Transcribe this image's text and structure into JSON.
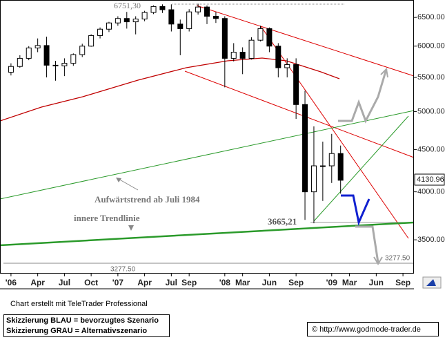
{
  "chart_data": {
    "type": "candlestick",
    "log": true,
    "color_up": "#ffffff",
    "color_down": "#000000",
    "x": [
      "2006-01",
      "2006-02",
      "2006-03",
      "2006-04",
      "2006-05",
      "2006-06",
      "2006-07",
      "2006-08",
      "2006-09",
      "2006-10",
      "2006-11",
      "2006-12",
      "2007-01",
      "2007-02",
      "2007-03",
      "2007-04",
      "2007-05",
      "2007-06",
      "2007-07",
      "2007-08",
      "2007-09",
      "2007-10",
      "2007-11",
      "2007-12",
      "2008-01",
      "2008-02",
      "2008-03",
      "2008-04",
      "2008-05",
      "2008-06",
      "2008-07",
      "2008-08",
      "2008-09",
      "2008-10",
      "2008-11",
      "2008-12",
      "2009-01",
      "2009-02"
    ],
    "open": [
      5580,
      5670,
      5800,
      5970,
      6010,
      5690,
      5680,
      5720,
      5860,
      6000,
      6180,
      6290,
      6400,
      6480,
      6420,
      6470,
      6590,
      6700,
      6640,
      6380,
      6300,
      6600,
      6690,
      6520,
      6480,
      5800,
      5900,
      5800,
      6100,
      6300,
      6000,
      5650,
      5700,
      5100,
      4000,
      4300,
      4300,
      4450
    ],
    "high": [
      5720,
      5850,
      6000,
      6130,
      6160,
      5760,
      5800,
      5880,
      6040,
      6200,
      6320,
      6420,
      6520,
      6600,
      6520,
      6620,
      6720,
      6740,
      6740,
      6460,
      6650,
      6751.3,
      6720,
      6600,
      6520,
      6050,
      5980,
      6150,
      6350,
      6320,
      6050,
      5800,
      5800,
      5300,
      4800,
      4600,
      4700,
      4550
    ],
    "low": [
      5530,
      5650,
      5770,
      5900,
      5500,
      5450,
      5520,
      5680,
      5820,
      5990,
      6130,
      6240,
      6350,
      6300,
      6200,
      6430,
      6560,
      6580,
      6250,
      5850,
      6250,
      6550,
      6380,
      6400,
      5350,
      5750,
      5550,
      5780,
      6080,
      5900,
      5500,
      5500,
      4900,
      3700,
      3665.21,
      3900,
      4100,
      3980
    ],
    "close": [
      5670,
      5800,
      5970,
      6010,
      5690,
      5680,
      5720,
      5860,
      6000,
      6180,
      6290,
      6400,
      6480,
      6420,
      6470,
      6590,
      6700,
      6640,
      6380,
      6300,
      6600,
      6690,
      6520,
      6480,
      5800,
      5900,
      5800,
      6100,
      6300,
      6000,
      5650,
      5700,
      5100,
      4000,
      4300,
      4300,
      4450,
      4130.96
    ],
    "xlim": [
      "2005-12",
      "2009-10"
    ],
    "xticks": [
      {
        "value": "2006-01",
        "label": "'06"
      },
      {
        "value": "2006-04",
        "label": "Apr"
      },
      {
        "value": "2006-07",
        "label": "Jul"
      },
      {
        "value": "2006-10",
        "label": "Oct"
      },
      {
        "value": "2007-01",
        "label": "'07"
      },
      {
        "value": "2007-04",
        "label": "Apr"
      },
      {
        "value": "2007-07",
        "label": "Jul"
      },
      {
        "value": "2007-09",
        "label": "Sep"
      },
      {
        "value": "2008-01",
        "label": "'08"
      },
      {
        "value": "2008-03",
        "label": "Mar"
      },
      {
        "value": "2008-06",
        "label": "Jun"
      },
      {
        "value": "2008-09",
        "label": "Sep"
      },
      {
        "value": "2009-01",
        "label": "'09"
      },
      {
        "value": "2009-03",
        "label": "Mar"
      },
      {
        "value": "2009-06",
        "label": "Jun"
      },
      {
        "value": "2009-09",
        "label": "Sep"
      }
    ],
    "ylim": [
      3192,
      6822
    ],
    "yticks": [
      {
        "value": 3500,
        "label": "3500.00"
      },
      {
        "value": 4000,
        "label": "4000.00"
      },
      {
        "value": 4500,
        "label": "4500.00"
      },
      {
        "value": 5000,
        "label": "5000.00"
      },
      {
        "value": 5500,
        "label": "5500.00"
      },
      {
        "value": 6000,
        "label": "6000.00"
      },
      {
        "value": 6500,
        "label": "6500.00"
      }
    ],
    "last_price_label": "4130.96",
    "annotations": {
      "high_label": "6751,30",
      "low_label": "3665,21",
      "support_label_left": "3277.50",
      "support_label_right": "3277.50",
      "trend_label": "Aufwärtstrend  ab Juli 1984",
      "inner_trend_label": "innere Trendlinie"
    },
    "footer": {
      "credit": "Chart erstellt mit TeleTrader Professional",
      "legend_blue": "Skizzierung BLAU = bevorzugtes Szenario",
      "legend_grey": "Skizzierung GRAU = Alternativszenario",
      "copyright": "© http://www.godmode-trader.de"
    }
  }
}
